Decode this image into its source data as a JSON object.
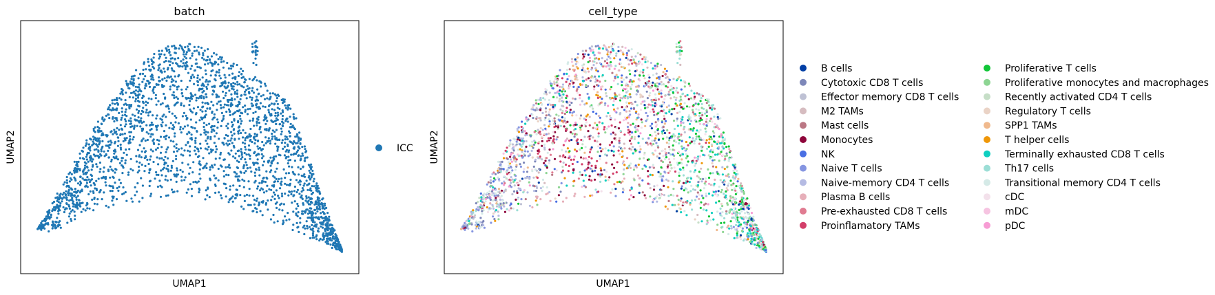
{
  "chart_data": [
    {
      "type": "scatter",
      "title": "batch",
      "xlabel": "UMAP1",
      "ylabel": "UMAP2",
      "grid": false,
      "ticks": false,
      "legend_position": "right",
      "legend": [
        {
          "label": "ICC",
          "color": "#1f77b4"
        }
      ],
      "point_color": "#1f77b4",
      "x_range": [
        0,
        10
      ],
      "y_range": [
        0,
        10
      ]
    },
    {
      "type": "scatter",
      "title": "cell_type",
      "xlabel": "UMAP1",
      "ylabel": "UMAP2",
      "grid": false,
      "ticks": false,
      "legend_position": "right",
      "x_range": [
        0,
        10
      ],
      "y_range": [
        0,
        10
      ],
      "legend": [
        {
          "label": "B cells",
          "color": "#023fa5"
        },
        {
          "label": "Cytotoxic CD8 T cells",
          "color": "#7d87b9"
        },
        {
          "label": "Effector memory CD8 T cells",
          "color": "#bec1d4"
        },
        {
          "label": "M2 TAMs",
          "color": "#d6bcc0"
        },
        {
          "label": "Mast cells",
          "color": "#bb7784"
        },
        {
          "label": "Monocytes",
          "color": "#8e063b"
        },
        {
          "label": "NK",
          "color": "#4a6fe3"
        },
        {
          "label": "Naive T cells",
          "color": "#8595e1"
        },
        {
          "label": "Naive-memory CD4 T cells",
          "color": "#b5bbe3"
        },
        {
          "label": "Plasma B cells",
          "color": "#e6afb9"
        },
        {
          "label": "Pre-exhausted CD8 T cells",
          "color": "#e07b91"
        },
        {
          "label": "Proinflamatory TAMs",
          "color": "#d33f6a"
        },
        {
          "label": "Proliferative T cells",
          "color": "#11c638"
        },
        {
          "label": "Proliferative monocytes and macrophages",
          "color": "#8dd593"
        },
        {
          "label": "Recently activated CD4 T cells",
          "color": "#c6dec7"
        },
        {
          "label": "Regulatory T cells",
          "color": "#ead3c6"
        },
        {
          "label": "SPP1 TAMs",
          "color": "#f0b98d"
        },
        {
          "label": "T helper cells",
          "color": "#ef9708"
        },
        {
          "label": "Terminally exhausted CD8 T cells",
          "color": "#0fcfc0"
        },
        {
          "label": "Th17 cells",
          "color": "#9cded6"
        },
        {
          "label": "Transitional memory CD4 T cells",
          "color": "#d5eae7"
        },
        {
          "label": "cDC",
          "color": "#f3e1eb"
        },
        {
          "label": "mDC",
          "color": "#f6c4e1"
        },
        {
          "label": "pDC",
          "color": "#f79cd4"
        }
      ]
    }
  ]
}
